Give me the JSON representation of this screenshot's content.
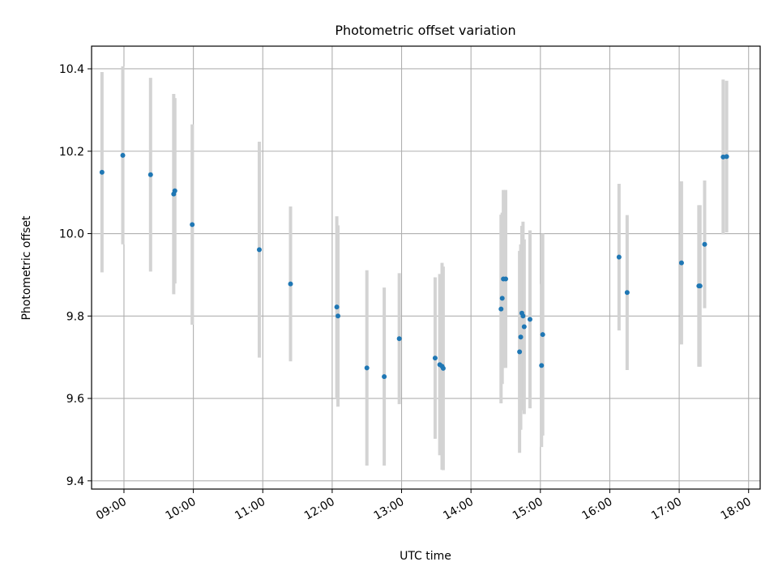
{
  "chart_data": {
    "type": "scatter",
    "title": "Photometric offset variation",
    "xlabel": "UTC time",
    "ylabel": "Photometric offset",
    "x_axis_type": "time",
    "xlim": [
      "08:32",
      "18:10"
    ],
    "ylim": [
      9.38,
      10.455
    ],
    "grid": true,
    "legend": "none",
    "x_ticks": [
      "09:00",
      "10:00",
      "11:00",
      "12:00",
      "13:00",
      "14:00",
      "15:00",
      "16:00",
      "17:00",
      "18:00"
    ],
    "y_ticks": [
      9.4,
      9.6,
      9.8,
      10.0,
      10.2,
      10.4
    ],
    "y_tick_labels": [
      "9.4",
      "9.6",
      "9.8",
      "10.0",
      "10.2",
      "10.4"
    ],
    "colors": {
      "marker": "#1f77b4",
      "errorbar": "#d3d3d3",
      "grid": "#b0b0b0"
    },
    "series": [
      {
        "points": [
          {
            "x": "08:41",
            "y": 10.149,
            "err": 0.243
          },
          {
            "x": "08:59",
            "y": 10.19,
            "err": 0.216
          },
          {
            "x": "09:23",
            "y": 10.143,
            "err": 0.235
          },
          {
            "x": "09:43",
            "y": 10.096,
            "err": 0.243
          },
          {
            "x": "09:44",
            "y": 10.104,
            "err": 0.225
          },
          {
            "x": "09:59",
            "y": 10.022,
            "err": 0.243
          },
          {
            "x": "10:57",
            "y": 9.961,
            "err": 0.262
          },
          {
            "x": "11:24",
            "y": 9.878,
            "err": 0.188
          },
          {
            "x": "12:04",
            "y": 9.822,
            "err": 0.22
          },
          {
            "x": "12:05",
            "y": 9.8,
            "err": 0.22
          },
          {
            "x": "12:30",
            "y": 9.674,
            "err": 0.237
          },
          {
            "x": "12:45",
            "y": 9.653,
            "err": 0.216
          },
          {
            "x": "12:58",
            "y": 9.745,
            "err": 0.159
          },
          {
            "x": "13:29",
            "y": 9.698,
            "err": 0.196
          },
          {
            "x": "13:33",
            "y": 9.682,
            "err": 0.22
          },
          {
            "x": "13:35",
            "y": 9.678,
            "err": 0.251
          },
          {
            "x": "13:36",
            "y": 9.673,
            "err": 0.247
          },
          {
            "x": "14:26",
            "y": 9.817,
            "err": 0.229
          },
          {
            "x": "14:27",
            "y": 9.843,
            "err": 0.208
          },
          {
            "x": "14:28",
            "y": 9.89,
            "err": 0.216
          },
          {
            "x": "14:30",
            "y": 9.89,
            "err": 0.216
          },
          {
            "x": "14:42",
            "y": 9.713,
            "err": 0.245
          },
          {
            "x": "14:43",
            "y": 9.749,
            "err": 0.225
          },
          {
            "x": "14:44",
            "y": 9.807,
            "err": 0.212
          },
          {
            "x": "14:45",
            "y": 9.8,
            "err": 0.229
          },
          {
            "x": "14:46",
            "y": 9.774,
            "err": 0.212
          },
          {
            "x": "14:51",
            "y": 9.792,
            "err": 0.216
          },
          {
            "x": "15:01",
            "y": 9.68,
            "err": 0.198
          },
          {
            "x": "15:02",
            "y": 9.755,
            "err": 0.245
          },
          {
            "x": "16:08",
            "y": 9.943,
            "err": 0.178
          },
          {
            "x": "16:15",
            "y": 9.857,
            "err": 0.188
          },
          {
            "x": "17:02",
            "y": 9.929,
            "err": 0.198
          },
          {
            "x": "17:17",
            "y": 9.873,
            "err": 0.196
          },
          {
            "x": "17:18",
            "y": 9.873,
            "err": 0.196
          },
          {
            "x": "17:22",
            "y": 9.974,
            "err": 0.155
          },
          {
            "x": "17:38",
            "y": 10.186,
            "err": 0.188
          },
          {
            "x": "17:41",
            "y": 10.187,
            "err": 0.184
          }
        ]
      }
    ]
  }
}
